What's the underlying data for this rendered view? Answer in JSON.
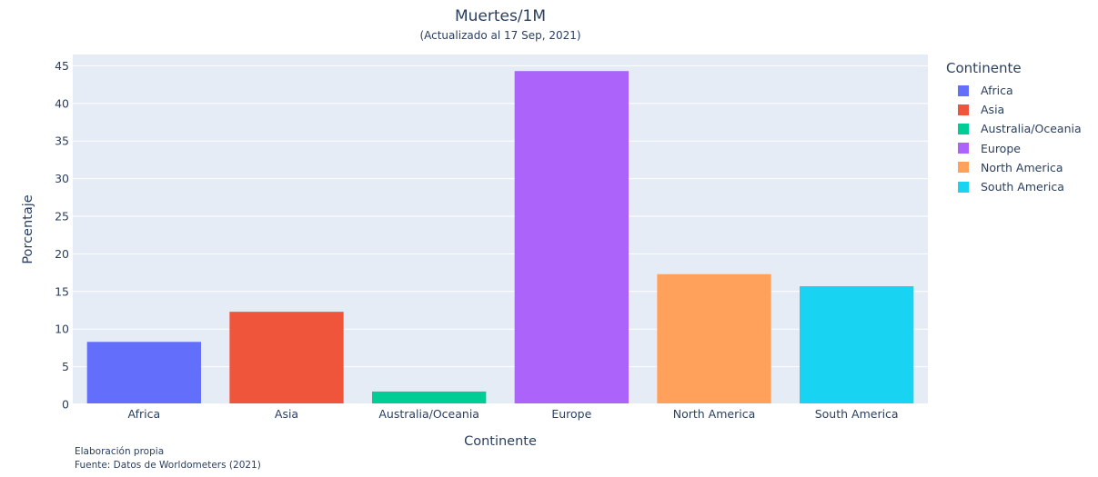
{
  "chart_data": {
    "type": "bar",
    "title": "Muertes/1M",
    "subtitle": "(Actualizado al 17 Sep, 2021)",
    "xlabel": "Continente",
    "ylabel": "Porcentaje",
    "categories": [
      "Africa",
      "Asia",
      "Australia/Oceania",
      "Europe",
      "North America",
      "South America"
    ],
    "values": [
      8.3,
      12.3,
      1.7,
      44.3,
      17.3,
      15.7
    ],
    "colors": [
      "#636efa",
      "#ef553b",
      "#00cc96",
      "#ab63fa",
      "#ffa15a",
      "#19d3f3"
    ],
    "ylim": [
      0,
      46.5
    ],
    "yticks": [
      0,
      5,
      10,
      15,
      20,
      25,
      30,
      35,
      40,
      45
    ],
    "grid": true,
    "legend_title": "Continente",
    "legend_position": "right",
    "plot_bg": "#e5ecf6"
  },
  "footer": {
    "line1": "Elaboración propia",
    "line2": "Fuente: Datos de Worldometers (2021)"
  }
}
